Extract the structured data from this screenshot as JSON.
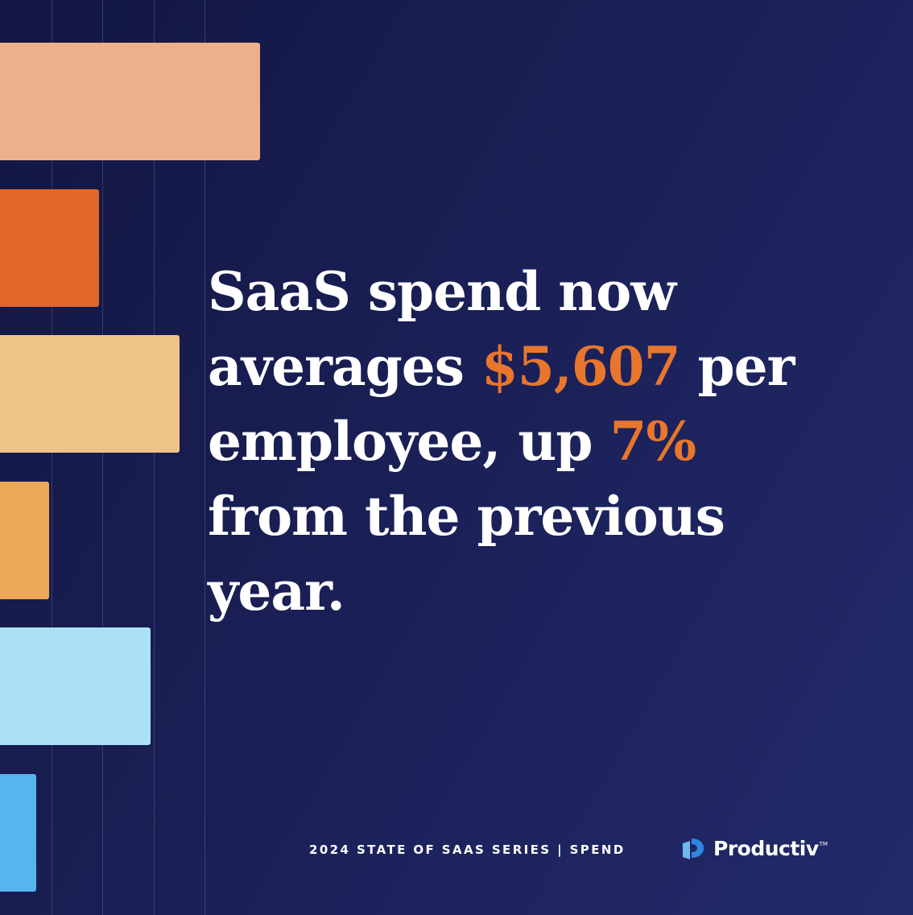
{
  "headline": {
    "line1": "SaaS spend now",
    "line2_pre": "averages ",
    "line2_highlight": "$5,607",
    "line2_post": " per",
    "line3_pre": "employee, up ",
    "line3_highlight": "7%",
    "line4": "from the previous",
    "line5": "year.",
    "highlight_color": "#e8762c"
  },
  "footer": {
    "series": "2024 STATE OF SAAS SERIES | SPEND"
  },
  "brand": {
    "name": "Productiv",
    "tm": "TM",
    "icon": "productiv-logo-icon"
  },
  "decor_bars": {
    "levels": [
      1.0,
      0.38,
      0.69,
      0.19,
      0.58,
      0.14
    ],
    "colors": [
      "#eeb08a",
      "#e2672b",
      "#efc387",
      "#eda855",
      "#abe1f7",
      "#55b5ec"
    ]
  }
}
